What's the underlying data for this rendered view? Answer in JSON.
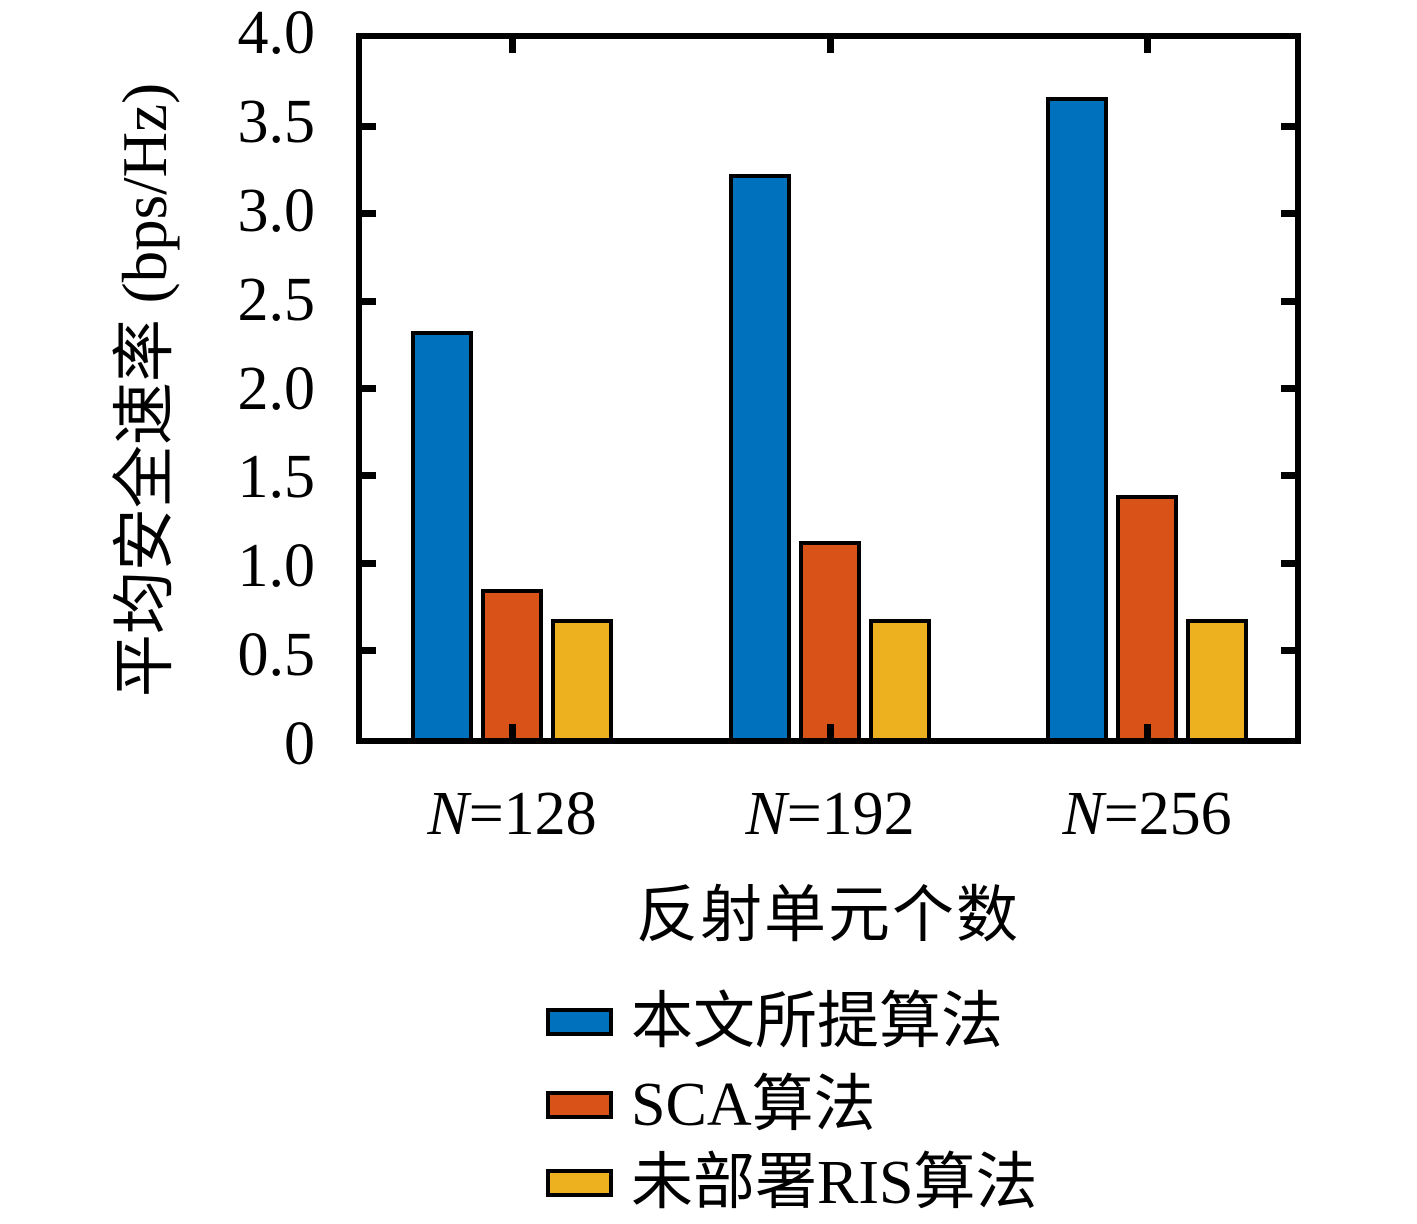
{
  "figure": {
    "background": "#ffffff",
    "axis_color": "#000000"
  },
  "y_axis": {
    "label": "平均安全速率 (bps/Hz)",
    "tick_labels": [
      "4.0",
      "3.5",
      "3.0",
      "2.5",
      "2.0",
      "1.5",
      "1.0",
      "0.5",
      "0"
    ],
    "tick_values": [
      4.0,
      3.5,
      3.0,
      2.5,
      2.0,
      1.5,
      1.0,
      0.5,
      0
    ]
  },
  "x_axis": {
    "label": "反射单元个数",
    "tick_labels": [
      "N=128",
      "N=192",
      "N=256"
    ]
  },
  "legend": {
    "entries": [
      "本文所提算法",
      "SCA算法",
      "未部署RIS算法"
    ]
  },
  "chart_data": {
    "type": "bar",
    "title": "",
    "xlabel": "反射单元个数",
    "ylabel": "平均安全速率 (bps/Hz)",
    "ylim": [
      0,
      4.0
    ],
    "ytick_step": 0.5,
    "grid": false,
    "legend_position": "below-chart",
    "categories": [
      "N=128",
      "N=192",
      "N=256"
    ],
    "series": [
      {
        "name": "本文所提算法",
        "color": "#0072BD",
        "values": [
          2.33,
          3.23,
          3.67
        ]
      },
      {
        "name": "SCA算法",
        "color": "#D95319",
        "values": [
          0.85,
          1.13,
          1.39
        ]
      },
      {
        "name": "未部署RIS算法",
        "color": "#EDB120",
        "values": [
          0.68,
          0.68,
          0.68
        ]
      }
    ]
  }
}
